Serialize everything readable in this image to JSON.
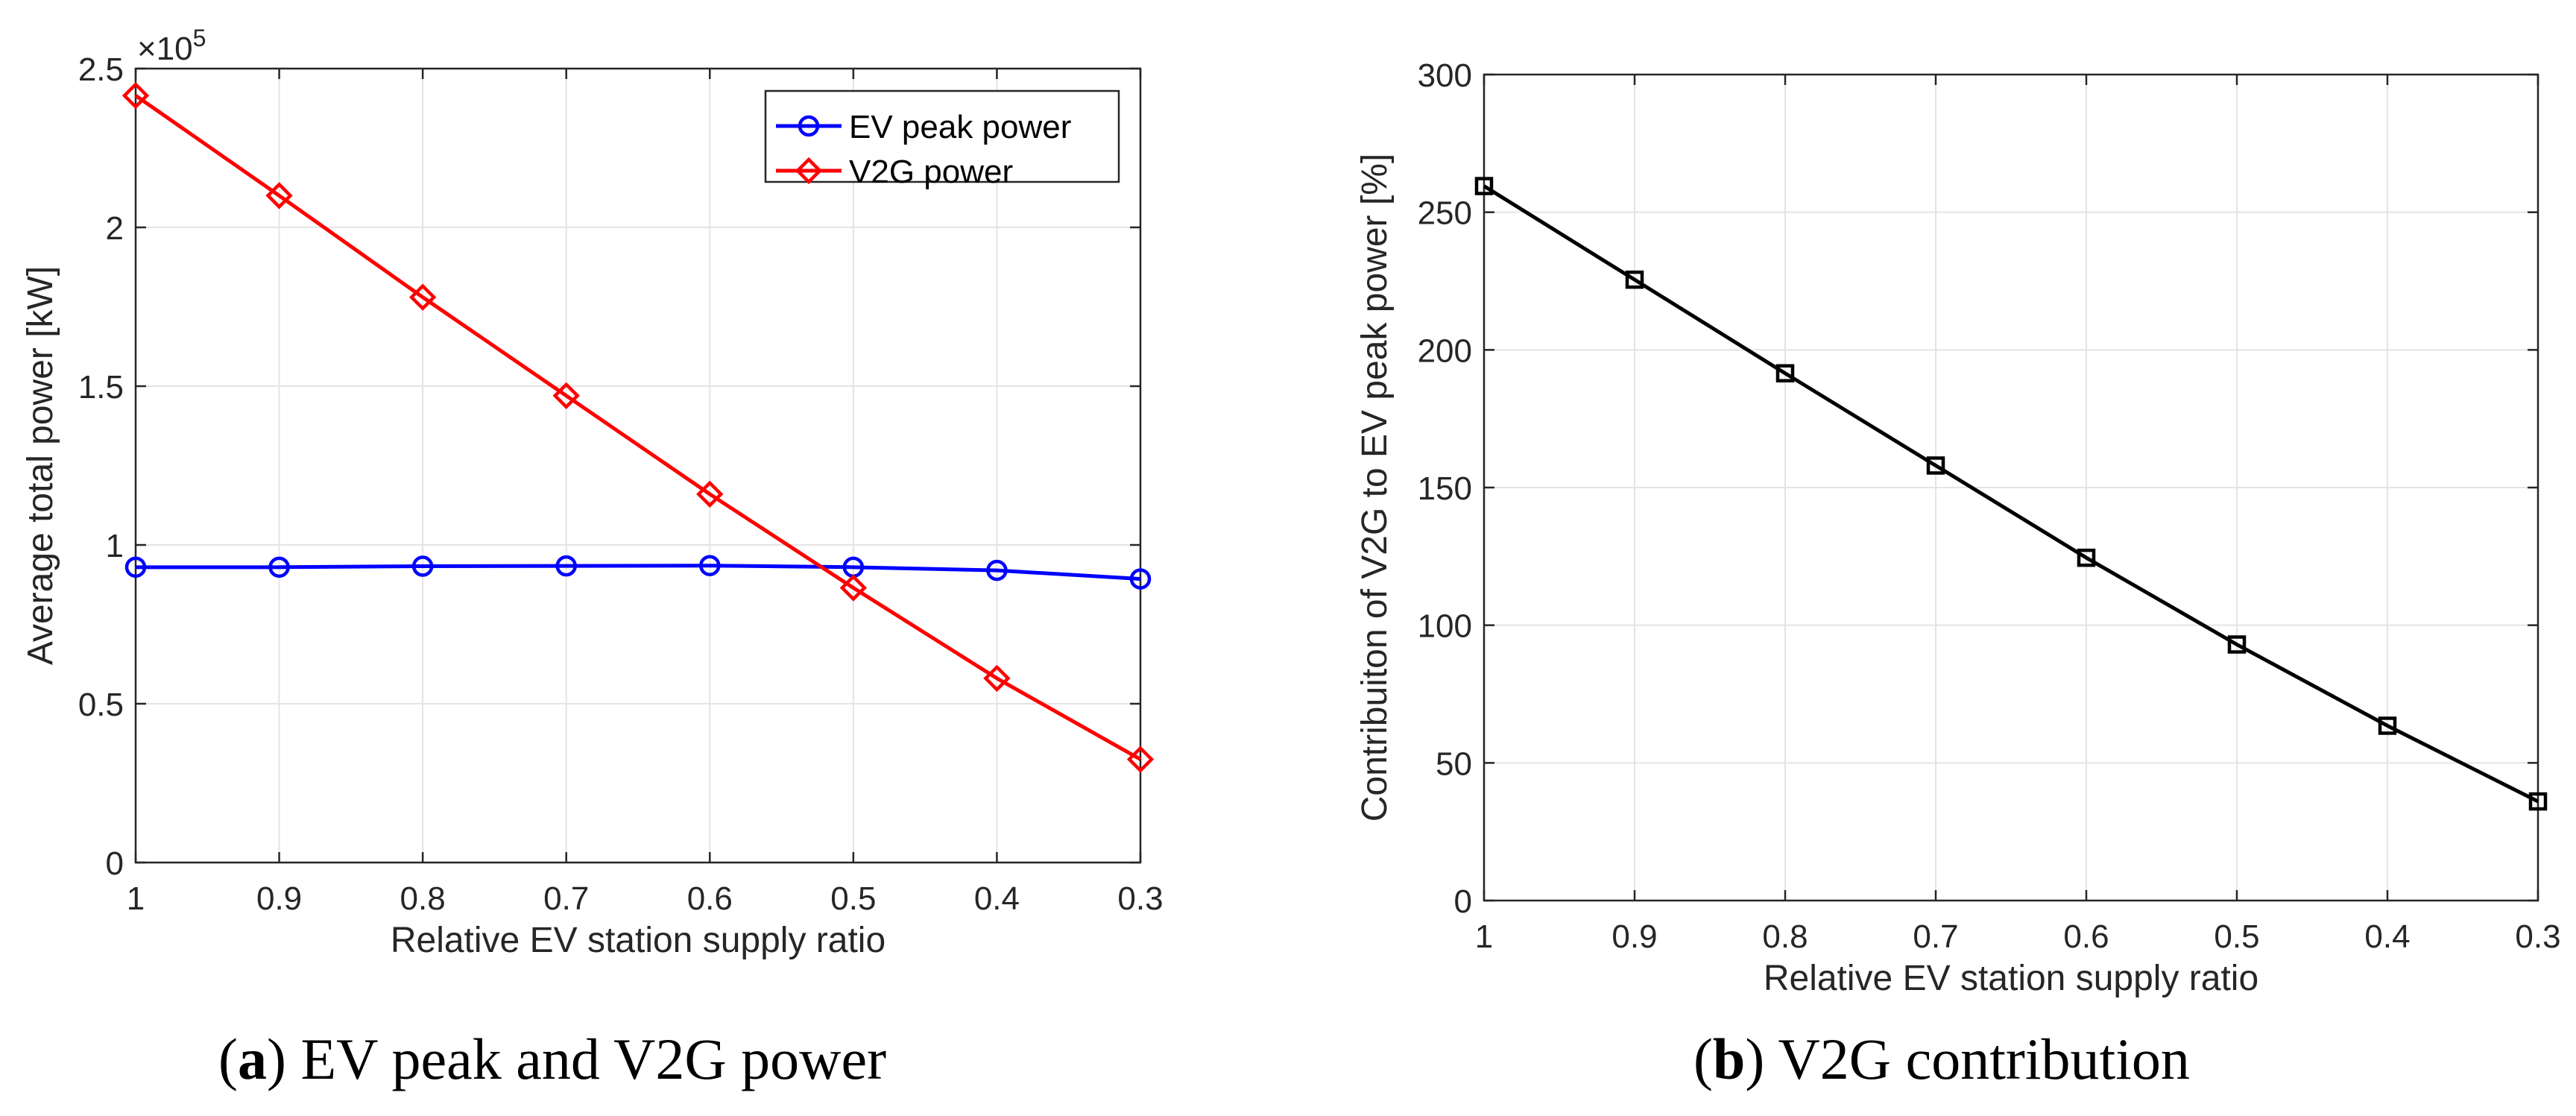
{
  "chart_data": [
    {
      "type": "line",
      "x": [
        1,
        0.9,
        0.8,
        0.7,
        0.6,
        0.5,
        0.4,
        0.3
      ],
      "x_tick_labels": [
        "1",
        "0.9",
        "0.8",
        "0.7",
        "0.6",
        "0.5",
        "0.4",
        "0.3"
      ],
      "x_reversed": true,
      "xlim": [
        1,
        0.3
      ],
      "xlabel": "Relative EV station supply ratio",
      "ylabel": "Average total power [kW]",
      "ylim": [
        0,
        2.5
      ],
      "y_ticks": [
        0,
        0.5,
        1,
        1.5,
        2,
        2.5
      ],
      "y_tick_labels": [
        "0",
        "0.5",
        "1",
        "1.5",
        "2",
        "2.5"
      ],
      "y_multiplier": "×10",
      "y_multiplier_exponent": "5",
      "grid": true,
      "legend_position": "top-right",
      "series": [
        {
          "name": "EV peak power",
          "color": "#0000ff",
          "marker": "circle",
          "values": [
            0.93,
            0.93,
            0.933,
            0.934,
            0.935,
            0.93,
            0.92,
            0.893
          ]
        },
        {
          "name": "V2G power",
          "color": "#ff0000",
          "marker": "diamond",
          "values": [
            2.415,
            2.1,
            1.78,
            1.47,
            1.16,
            0.865,
            0.58,
            0.325
          ]
        }
      ],
      "caption_letter": "a",
      "caption_text": " EV peak and V2G power"
    },
    {
      "type": "line",
      "x": [
        1,
        0.9,
        0.8,
        0.7,
        0.6,
        0.5,
        0.4,
        0.3
      ],
      "x_tick_labels": [
        "1",
        "0.9",
        "0.8",
        "0.7",
        "0.6",
        "0.5",
        "0.4",
        "0.3"
      ],
      "x_reversed": true,
      "xlim": [
        1,
        0.3
      ],
      "xlabel": "Relative EV station supply ratio",
      "ylabel": "Contribuiton of V2G to EV peak power [%]",
      "ylim": [
        0,
        300
      ],
      "y_ticks": [
        0,
        50,
        100,
        150,
        200,
        250,
        300
      ],
      "y_tick_labels": [
        "0",
        "50",
        "100",
        "150",
        "200",
        "250",
        "300"
      ],
      "grid": true,
      "series": [
        {
          "color": "#000000",
          "marker": "square",
          "values": [
            259.5,
            225.5,
            191.5,
            158,
            124.5,
            93,
            63.5,
            36
          ]
        }
      ],
      "caption_letter": "b",
      "caption_text": " V2G contribution"
    }
  ]
}
